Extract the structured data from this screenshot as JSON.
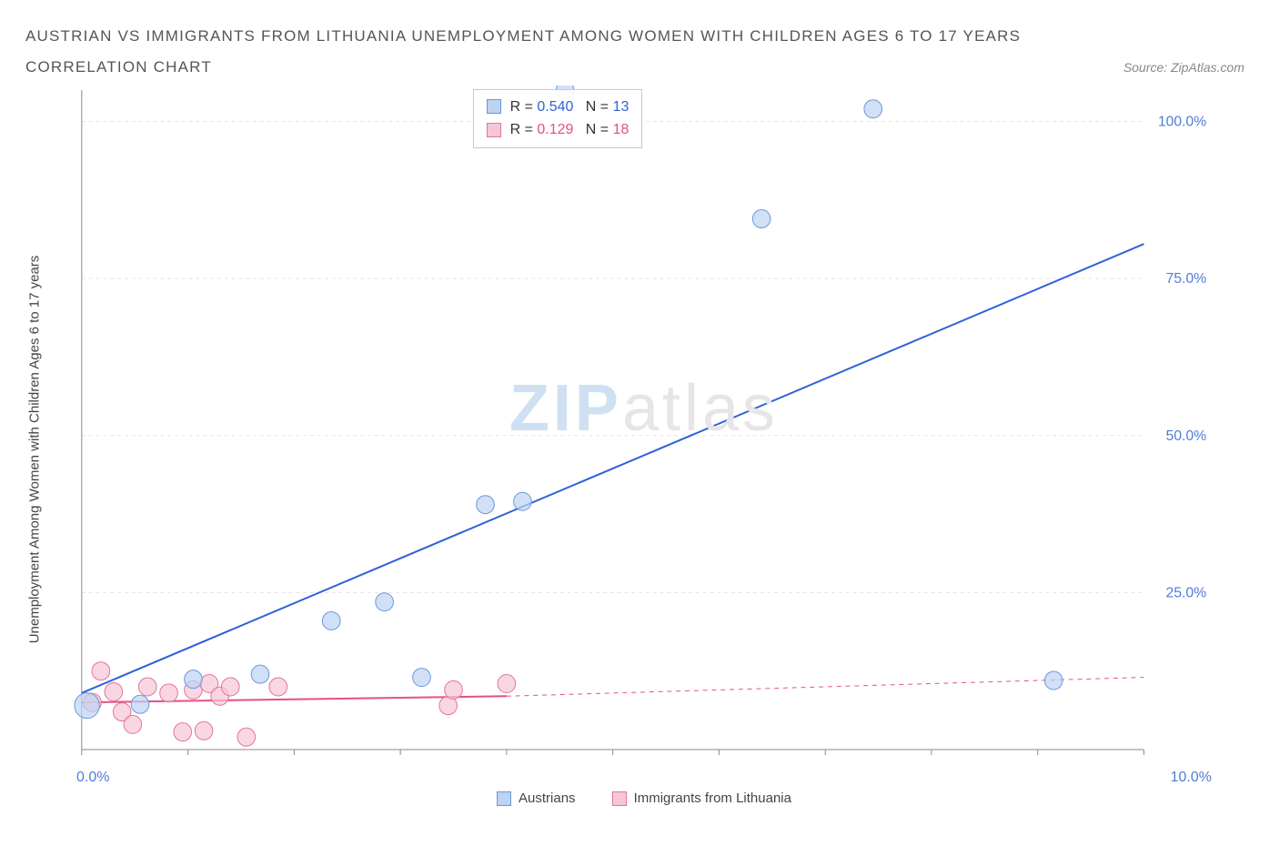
{
  "title": "AUSTRIAN VS IMMIGRANTS FROM LITHUANIA UNEMPLOYMENT AMONG WOMEN WITH CHILDREN AGES 6 TO 17 YEARS",
  "subtitle": "CORRELATION CHART",
  "source_label": "Source: ZipAtlas.com",
  "ylabel": "Unemployment Among Women with Children Ages 6 to 17 years",
  "watermark": {
    "zip": "ZIP",
    "atlas": "atlas"
  },
  "chart": {
    "type": "scatter",
    "xlim": [
      0.0,
      10.0
    ],
    "ylim": [
      0.0,
      105.0
    ],
    "x_tick_vals": [
      0,
      1,
      2,
      3,
      4,
      5,
      6,
      7,
      8,
      9,
      10
    ],
    "x_tick_labels_shown": {
      "0": "0.0%",
      "10": "10.0%"
    },
    "y_tick_vals": [
      25.0,
      50.0,
      75.0,
      100.0
    ],
    "y_tick_labels": [
      "25.0%",
      "50.0%",
      "75.0%",
      "100.0%"
    ],
    "y_tick_color": "#4f7bd9",
    "x_tick_color": "#4f7bd9",
    "axis_color": "#888888",
    "grid_color": "#e3e3e3",
    "grid_dash": "4 4",
    "background_color": "#ffffff",
    "marker_radius": 10,
    "marker_stroke_width": 1,
    "line_width": 2,
    "series": {
      "austrians": {
        "label": "Austrians",
        "fill": "#bcd3f2",
        "stroke": "#6a97db",
        "line_color": "#2e62d9",
        "R": "0.540",
        "N": "13",
        "points": [
          {
            "x": 0.05,
            "y": 7.0,
            "r": 14
          },
          {
            "x": 0.55,
            "y": 7.2
          },
          {
            "x": 1.05,
            "y": 11.2
          },
          {
            "x": 1.68,
            "y": 12.0
          },
          {
            "x": 2.35,
            "y": 20.5
          },
          {
            "x": 2.85,
            "y": 23.5
          },
          {
            "x": 3.2,
            "y": 11.5
          },
          {
            "x": 3.8,
            "y": 39.0
          },
          {
            "x": 4.15,
            "y": 39.5
          },
          {
            "x": 4.55,
            "y": 105.0
          },
          {
            "x": 6.4,
            "y": 84.5
          },
          {
            "x": 7.45,
            "y": 102.0
          },
          {
            "x": 9.15,
            "y": 11.0
          }
        ],
        "trend": {
          "x1": 0.0,
          "y1": 9.0,
          "x2": 10.0,
          "y2": 80.5
        }
      },
      "lithuania": {
        "label": "Immigrants from Lithuania",
        "fill": "#f6c6d6",
        "stroke": "#e2739c",
        "line_color": "#e54f86",
        "R": "0.129",
        "N": "18",
        "points": [
          {
            "x": 0.1,
            "y": 7.5
          },
          {
            "x": 0.18,
            "y": 12.5
          },
          {
            "x": 0.3,
            "y": 9.2
          },
          {
            "x": 0.38,
            "y": 6.0
          },
          {
            "x": 0.48,
            "y": 4.0
          },
          {
            "x": 0.62,
            "y": 10.0
          },
          {
            "x": 0.82,
            "y": 9.0
          },
          {
            "x": 0.95,
            "y": 2.8
          },
          {
            "x": 1.05,
            "y": 9.5
          },
          {
            "x": 1.15,
            "y": 3.0
          },
          {
            "x": 1.2,
            "y": 10.5
          },
          {
            "x": 1.3,
            "y": 8.5
          },
          {
            "x": 1.4,
            "y": 10.0
          },
          {
            "x": 1.55,
            "y": 2.0
          },
          {
            "x": 1.85,
            "y": 10.0
          },
          {
            "x": 3.45,
            "y": 7.0
          },
          {
            "x": 3.5,
            "y": 9.5
          },
          {
            "x": 4.0,
            "y": 10.5
          }
        ],
        "trend_solid": {
          "x1": 0.0,
          "y1": 7.5,
          "x2": 4.0,
          "y2": 8.5
        },
        "trend_dashed": {
          "x1": 4.0,
          "y1": 8.5,
          "x2": 10.0,
          "y2": 11.5
        }
      }
    },
    "stats_box": {
      "left_pct": 35,
      "top_pct": 0.5
    },
    "legend_x": {
      "items": [
        {
          "key": "austrians",
          "label": "Austrians"
        },
        {
          "key": "lithuania",
          "label": "Immigrants from Lithuania"
        }
      ]
    }
  }
}
